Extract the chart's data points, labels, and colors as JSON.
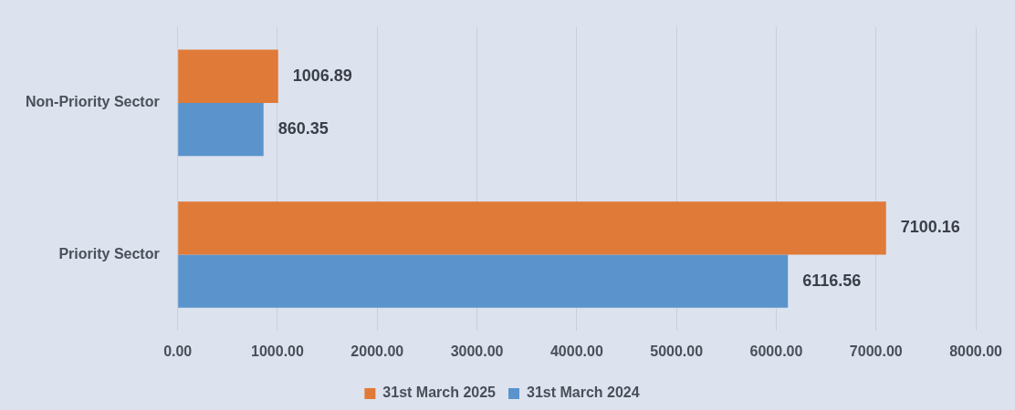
{
  "chart_data": {
    "type": "bar",
    "orientation": "horizontal",
    "categories": [
      "Non-Priority Sector",
      "Priority Sector"
    ],
    "series": [
      {
        "name": "31st March 2025",
        "color": "#e07a38",
        "values": [
          1006.89,
          7100.16
        ]
      },
      {
        "name": "31st March 2024",
        "color": "#5b94cc",
        "values": [
          860.35,
          6116.56
        ]
      }
    ],
    "xlim": [
      0,
      8000
    ],
    "xticks": [
      {
        "value": 0,
        "label": "0.00"
      },
      {
        "value": 1000,
        "label": "1000.00"
      },
      {
        "value": 2000,
        "label": "2000.00"
      },
      {
        "value": 3000,
        "label": "3000.00"
      },
      {
        "value": 4000,
        "label": "4000.00"
      },
      {
        "value": 5000,
        "label": "5000.00"
      },
      {
        "value": 6000,
        "label": "6000.00"
      },
      {
        "value": 7000,
        "label": "7000.00"
      },
      {
        "value": 8000,
        "label": "8000.00"
      }
    ],
    "grid": "x",
    "legend": "bottom",
    "data_labels": true
  }
}
